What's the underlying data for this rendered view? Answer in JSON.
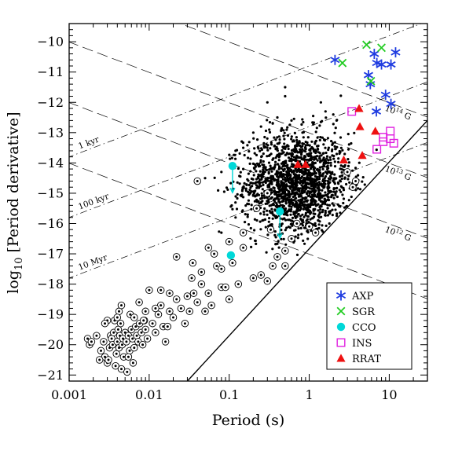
{
  "chart_data": {
    "type": "scatter",
    "xlabel": "Period (s)",
    "ylabel_prefix": "log",
    "ylabel_subscript": "10",
    "ylabel_suffix": "[Period derivative]",
    "x_scale": "log",
    "xlim": [
      0.001,
      30
    ],
    "ylim": [
      -21.2,
      -9.4
    ],
    "x_ticks": [
      {
        "value": 0.001,
        "label": "0.001"
      },
      {
        "value": 0.01,
        "label": "0.01"
      },
      {
        "value": 0.1,
        "label": "0.1"
      },
      {
        "value": 1,
        "label": "1"
      },
      {
        "value": 10,
        "label": "10"
      }
    ],
    "y_ticks": [
      {
        "value": -10,
        "label": "−10"
      },
      {
        "value": -11,
        "label": "−11"
      },
      {
        "value": -12,
        "label": "−12"
      },
      {
        "value": -13,
        "label": "−13"
      },
      {
        "value": -14,
        "label": "−14"
      },
      {
        "value": -15,
        "label": "−15"
      },
      {
        "value": -16,
        "label": "−16"
      },
      {
        "value": -17,
        "label": "−17"
      },
      {
        "value": -18,
        "label": "−18"
      },
      {
        "value": -19,
        "label": "−19"
      },
      {
        "value": -20,
        "label": "−20"
      },
      {
        "value": -21,
        "label": "−21"
      }
    ],
    "age_lines": [
      {
        "label": "1 kyr",
        "tau_years": 1000
      },
      {
        "label": "100 kyr",
        "tau_years": 100000
      },
      {
        "label": "10 Myr",
        "tau_years": 10000000
      }
    ],
    "field_lines": [
      {
        "label_base": "10",
        "label_exp": "14",
        "label_unit": "G",
        "B_gauss": 100000000000000.0
      },
      {
        "label_base": "10",
        "label_exp": "13",
        "label_unit": "G",
        "B_gauss": 10000000000000.0
      },
      {
        "label_base": "10",
        "label_exp": "12",
        "label_unit": "G",
        "B_gauss": 1000000000000.0
      },
      {
        "label_base": "10",
        "label_exp": "11",
        "label_unit": "G",
        "B_gauss": 100000000000.0
      }
    ],
    "death_line": {
      "points": [
        [
          0.03,
          -21.2
        ],
        [
          30,
          -12.6
        ]
      ]
    },
    "radio_pulsars": {
      "count": 1700,
      "normal": {
        "log_period_center": -0.15,
        "log_period_sigma": 0.33,
        "log_pdot_center": -14.7,
        "log_pdot_sigma": 0.85
      },
      "outliers": [
        [
          0.15,
          -13.5
        ],
        [
          0.2,
          -13.0
        ],
        [
          0.25,
          -12.8
        ],
        [
          0.3,
          -12.0
        ],
        [
          0.5,
          -11.8
        ],
        [
          0.5,
          -11.5
        ],
        [
          0.6,
          -12.6
        ],
        [
          0.45,
          -12.9
        ],
        [
          0.35,
          -12.7
        ],
        [
          1.6,
          -12.3
        ],
        [
          2.0,
          -12.4
        ],
        [
          2.2,
          -12.6
        ],
        [
          1.4,
          -12.0
        ],
        [
          0.4,
          -12.5
        ],
        [
          0.08,
          -14.3
        ],
        [
          0.12,
          -15.8
        ],
        [
          0.08,
          -16.3
        ],
        [
          0.05,
          -14.5
        ],
        [
          0.12,
          -13.6
        ],
        [
          0.15,
          -14.2
        ]
      ]
    },
    "binary_pulsars": [
      [
        0.0017,
        -19.8
      ],
      [
        0.0018,
        -20.0
      ],
      [
        0.0019,
        -19.9
      ],
      [
        0.0022,
        -19.7
      ],
      [
        0.0025,
        -20.2
      ],
      [
        0.0027,
        -19.9
      ],
      [
        0.0028,
        -20.4
      ],
      [
        0.003,
        -20.6
      ],
      [
        0.0031,
        -20.5
      ],
      [
        0.0032,
        -20.1
      ],
      [
        0.0033,
        -19.7
      ],
      [
        0.0034,
        -19.8
      ],
      [
        0.0035,
        -20.0
      ],
      [
        0.0036,
        -19.6
      ],
      [
        0.0037,
        -19.2
      ],
      [
        0.0038,
        -20.7
      ],
      [
        0.0039,
        -20.3
      ],
      [
        0.004,
        -19.9
      ],
      [
        0.0041,
        -19.5
      ],
      [
        0.0042,
        -20.1
      ],
      [
        0.0043,
        -19.7
      ],
      [
        0.0044,
        -19.3
      ],
      [
        0.0045,
        -20.8
      ],
      [
        0.0046,
        -20.0
      ],
      [
        0.0047,
        -19.8
      ],
      [
        0.0048,
        -20.4
      ],
      [
        0.005,
        -19.6
      ],
      [
        0.0052,
        -19.9
      ],
      [
        0.0053,
        -20.9
      ],
      [
        0.0055,
        -19.7
      ],
      [
        0.0057,
        -20.2
      ],
      [
        0.0058,
        -19.0
      ],
      [
        0.006,
        -19.5
      ],
      [
        0.0062,
        -19.8
      ],
      [
        0.0065,
        -20.1
      ],
      [
        0.0068,
        -19.4
      ],
      [
        0.007,
        -19.7
      ],
      [
        0.0073,
        -19.9
      ],
      [
        0.0076,
        -19.3
      ],
      [
        0.008,
        -19.6
      ],
      [
        0.0083,
        -20.0
      ],
      [
        0.0087,
        -19.2
      ],
      [
        0.009,
        -19.5
      ],
      [
        0.0095,
        -19.8
      ],
      [
        0.01,
        -18.2
      ],
      [
        0.011,
        -19.3
      ],
      [
        0.012,
        -19.6
      ],
      [
        0.013,
        -19.0
      ],
      [
        0.014,
        -18.7
      ],
      [
        0.015,
        -19.4
      ],
      [
        0.016,
        -19.9
      ],
      [
        0.018,
        -18.9
      ],
      [
        0.02,
        -19.1
      ],
      [
        0.022,
        -18.5
      ],
      [
        0.025,
        -18.8
      ],
      [
        0.028,
        -19.3
      ],
      [
        0.03,
        -18.4
      ],
      [
        0.032,
        -18.9
      ],
      [
        0.034,
        -17.8
      ],
      [
        0.036,
        -18.3
      ],
      [
        0.04,
        -18.6
      ],
      [
        0.045,
        -18.0
      ],
      [
        0.05,
        -18.9
      ],
      [
        0.055,
        -18.3
      ],
      [
        0.06,
        -18.7
      ],
      [
        0.065,
        -17.0
      ],
      [
        0.07,
        -17.4
      ],
      [
        0.08,
        -18.1
      ],
      [
        0.09,
        -18.1
      ],
      [
        0.1,
        -18.5
      ],
      [
        0.11,
        -17.3
      ],
      [
        0.13,
        -18.0
      ],
      [
        0.15,
        -16.8
      ],
      [
        0.2,
        -17.8
      ],
      [
        0.3,
        -17.9
      ],
      [
        0.35,
        -17.4
      ],
      [
        0.4,
        -17.1
      ],
      [
        0.5,
        -16.9
      ],
      [
        0.6,
        -16.5
      ],
      [
        0.035,
        -17.3
      ],
      [
        0.045,
        -17.6
      ],
      [
        0.055,
        -16.8
      ],
      [
        0.08,
        -17.5
      ],
      [
        0.1,
        -16.6
      ],
      [
        0.22,
        -15.5
      ],
      [
        0.3,
        -15.0
      ],
      [
        0.33,
        -16.2
      ],
      [
        0.5,
        -17.4
      ],
      [
        0.7,
        -16.0
      ],
      [
        0.022,
        -17.1
      ],
      [
        0.018,
        -18.3
      ],
      [
        0.012,
        -18.8
      ],
      [
        0.009,
        -18.9
      ],
      [
        0.0075,
        -18.6
      ],
      [
        0.0065,
        -19.1
      ],
      [
        0.0042,
        -18.9
      ],
      [
        0.0045,
        -18.7
      ],
      [
        0.014,
        -18.2
      ],
      [
        0.004,
        -19.1
      ],
      [
        0.003,
        -19.2
      ],
      [
        0.0028,
        -19.3
      ],
      [
        0.0024,
        -20.5
      ],
      [
        0.0055,
        -20.4
      ],
      [
        0.0063,
        -20.6
      ],
      [
        3.5,
        -14.8
      ],
      [
        3.8,
        -14.6
      ],
      [
        3.0,
        -14.3
      ],
      [
        1.2,
        -16.3
      ],
      [
        1.0,
        -16.1
      ],
      [
        0.04,
        -14.6
      ],
      [
        0.15,
        -16.3
      ],
      [
        0.25,
        -17.7
      ],
      [
        0.017,
        -19.4
      ],
      [
        0.0085,
        -19.2
      ]
    ],
    "series": [
      {
        "name": "AXP",
        "color": "#1f3ce0",
        "marker": "asterisk",
        "points": [
          [
            2.1,
            -10.6
          ],
          [
            5.5,
            -11.1
          ],
          [
            5.8,
            -11.4
          ],
          [
            6.5,
            -10.4
          ],
          [
            8.0,
            -10.75
          ],
          [
            7.0,
            -10.7
          ],
          [
            10.5,
            -10.75
          ],
          [
            12.0,
            -10.35
          ],
          [
            9.0,
            -11.75
          ],
          [
            10.5,
            -12.05
          ],
          [
            6.9,
            -12.3
          ]
        ]
      },
      {
        "name": "SGR",
        "color": "#22cc22",
        "marker": "cross",
        "points": [
          [
            2.6,
            -10.7
          ],
          [
            5.2,
            -10.1
          ],
          [
            8.0,
            -10.2
          ],
          [
            5.9,
            -11.3
          ]
        ]
      },
      {
        "name": "CCO",
        "color": "#00d8d8",
        "marker": "circle",
        "points": [
          [
            0.105,
            -17.05
          ],
          [
            0.11,
            -14.1
          ],
          [
            0.43,
            -15.6
          ]
        ],
        "upper_limit_points": [
          [
            0.11,
            -14.1
          ],
          [
            0.43,
            -15.6
          ]
        ]
      },
      {
        "name": "INS",
        "color": "#e020e0",
        "marker": "square",
        "points": [
          [
            3.4,
            -12.3
          ],
          [
            7.0,
            -13.55
          ],
          [
            8.4,
            -13.15
          ],
          [
            8.4,
            -13.3
          ],
          [
            10.3,
            -12.95
          ],
          [
            11.4,
            -13.35
          ],
          [
            10.3,
            -13.2
          ]
        ]
      },
      {
        "name": "RRAT",
        "color": "#ee1111",
        "marker": "triangle",
        "points": [
          [
            0.72,
            -14.05
          ],
          [
            0.9,
            -14.05
          ],
          [
            2.7,
            -13.9
          ],
          [
            4.3,
            -12.8
          ],
          [
            4.6,
            -13.75
          ],
          [
            6.7,
            -12.95
          ],
          [
            4.2,
            -12.2
          ]
        ]
      }
    ],
    "legend": {
      "position": "bottom-right",
      "entries": [
        "AXP",
        "SGR",
        "CCO",
        "INS",
        "RRAT"
      ]
    }
  }
}
